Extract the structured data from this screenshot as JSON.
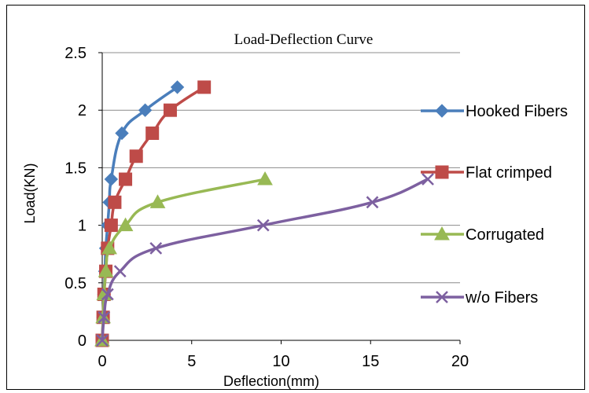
{
  "chart_data": {
    "type": "line",
    "title": "Load-Deflection Curve",
    "xlabel": "Deflection(mm)",
    "ylabel": "Load(KN)",
    "xlim": [
      0,
      20
    ],
    "ylim": [
      0,
      2.5
    ],
    "xticks": [
      0,
      5,
      10,
      15,
      20
    ],
    "yticks": [
      0,
      0.5,
      1,
      1.5,
      2,
      2.5
    ],
    "xtick_labels": [
      "0",
      "5",
      "10",
      "15",
      "20"
    ],
    "ytick_labels": [
      "0",
      "0.5",
      "1",
      "1.5",
      "2",
      "2.5"
    ],
    "grid": "horizontal",
    "legend_position": "right",
    "series": [
      {
        "name": "Hooked Fibers",
        "color": "#4a7ebb",
        "marker": "diamond",
        "x": [
          0,
          0.05,
          0.1,
          0.15,
          0.2,
          0.3,
          0.4,
          0.5,
          1.1,
          2.4,
          4.2
        ],
        "y": [
          0,
          0.2,
          0.4,
          0.6,
          0.8,
          1.0,
          1.2,
          1.4,
          1.8,
          2.0,
          2.2
        ]
      },
      {
        "name": "Flat crimped",
        "color": "#be4b48",
        "marker": "square",
        "x": [
          0,
          0.05,
          0.1,
          0.2,
          0.3,
          0.5,
          0.7,
          1.3,
          1.9,
          2.8,
          3.8,
          5.7
        ],
        "y": [
          0,
          0.2,
          0.4,
          0.6,
          0.8,
          1.0,
          1.2,
          1.4,
          1.6,
          1.8,
          2.0,
          2.2
        ]
      },
      {
        "name": "Corrugated",
        "color": "#98b954",
        "marker": "triangle",
        "x": [
          0,
          0.05,
          0.1,
          0.2,
          0.4,
          1.3,
          3.1,
          9.1
        ],
        "y": [
          0,
          0.2,
          0.4,
          0.6,
          0.8,
          1.0,
          1.2,
          1.4
        ]
      },
      {
        "name": "w/o Fibers",
        "color": "#7d60a0",
        "marker": "x",
        "x": [
          0,
          0.1,
          0.3,
          1.0,
          3.0,
          9.0,
          15.1,
          18.2
        ],
        "y": [
          0,
          0.2,
          0.4,
          0.6,
          0.8,
          1.0,
          1.2,
          1.4
        ]
      }
    ]
  }
}
